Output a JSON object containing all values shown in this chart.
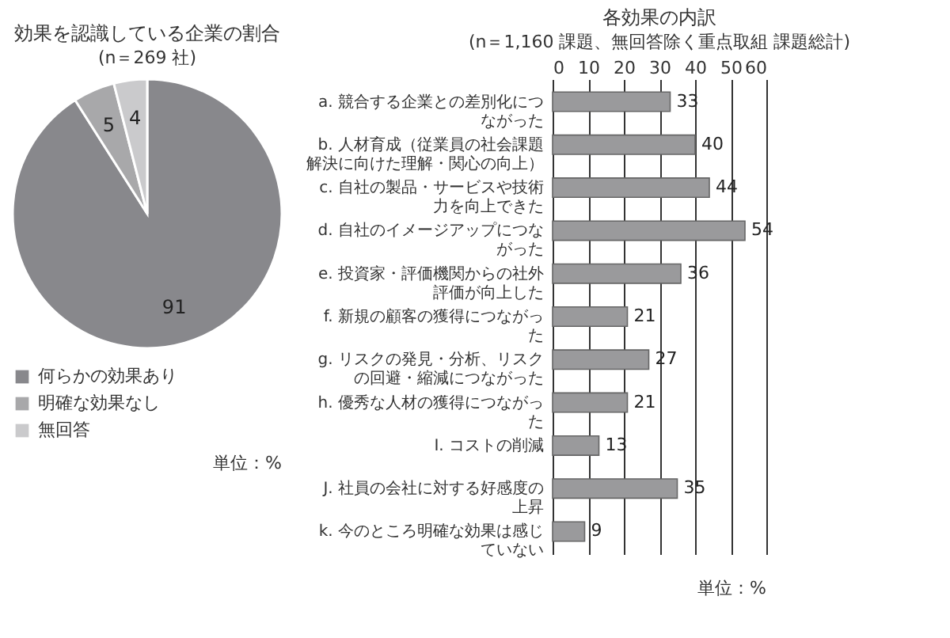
{
  "chart_data": [
    {
      "type": "pie",
      "title": "効果を認識している企業の割合",
      "subtitle": "(n＝269 社)",
      "categories": [
        "何らかの効果あり",
        "明確な効果なし",
        "無回答"
      ],
      "values": [
        91,
        5,
        4
      ],
      "colors": [
        "#88888c",
        "#a8a8aa",
        "#cacacc"
      ],
      "data_labels": true,
      "legend": "bottom",
      "annotations": [
        "単位：%"
      ]
    },
    {
      "type": "bar",
      "orientation": "horizontal",
      "title": "各効果の内訳",
      "subtitle": "(n＝1,160 課題、無回答除く重点取組 課題総計)",
      "categories": [
        "a. 競合する企業との差別化につながった",
        "b. 人材育成（従業員の社会課題解決に向けた理解・関心の向上）",
        "c. 自社の製品・サービスや技術力を向上できた",
        "d. 自社のイメージアップにつながった",
        "e. 投資家・評価機関からの社外評価が向上した",
        "f. 新規の顧客の獲得につながった",
        "g. リスクの発見・分析、リスクの回避・縮減につながった",
        "h. 優秀な人材の獲得につながった",
        "I. コストの削減",
        "J. 社員の会社に対する好感度の上昇",
        "k. 今のところ明確な効果は感じていない"
      ],
      "values": [
        33,
        40,
        44,
        54,
        36,
        21,
        27,
        21,
        13,
        35,
        9
      ],
      "color": "#9a9a9c",
      "xlim": [
        0,
        60
      ],
      "xticks": [
        0,
        10,
        20,
        30,
        40,
        50,
        60
      ],
      "grid": "x",
      "data_labels": true,
      "annotations": [
        "単位：%"
      ]
    }
  ]
}
